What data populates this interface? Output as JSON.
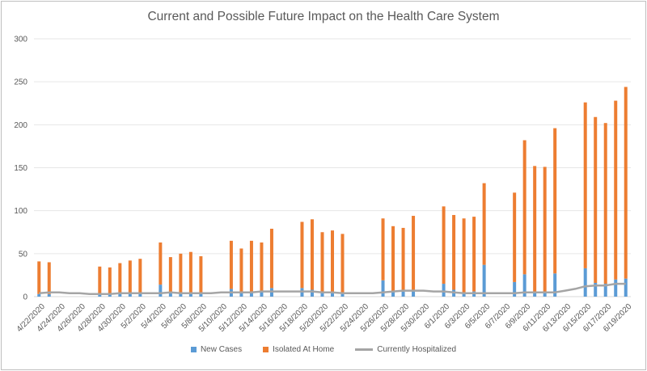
{
  "chart_data": {
    "type": "bar",
    "title": "Current and Possible Future Impact on the Health Care System",
    "xlabel": "",
    "ylabel": "",
    "ylim": [
      0,
      300
    ],
    "yticks": [
      0,
      50,
      100,
      150,
      200,
      250,
      300
    ],
    "grid": true,
    "legend_position": "bottom",
    "categories": [
      "4/22/2020",
      "4/23/2020",
      "4/24/2020",
      "4/25/2020",
      "4/26/2020",
      "4/27/2020",
      "4/28/2020",
      "4/29/2020",
      "4/30/2020",
      "5/1/2020",
      "5/2/2020",
      "5/3/2020",
      "5/4/2020",
      "5/5/2020",
      "5/6/2020",
      "5/7/2020",
      "5/8/2020",
      "5/9/2020",
      "5/10/2020",
      "5/11/2020",
      "5/12/2020",
      "5/13/2020",
      "5/14/2020",
      "5/15/2020",
      "5/16/2020",
      "5/17/2020",
      "5/18/2020",
      "5/19/2020",
      "5/20/2020",
      "5/21/2020",
      "5/22/2020",
      "5/23/2020",
      "5/24/2020",
      "5/25/2020",
      "5/26/2020",
      "5/27/2020",
      "5/28/2020",
      "5/29/2020",
      "5/30/2020",
      "5/31/2020",
      "6/1/2020",
      "6/2/2020",
      "6/3/2020",
      "6/4/2020",
      "6/5/2020",
      "6/6/2020",
      "6/7/2020",
      "6/8/2020",
      "6/9/2020",
      "6/10/2020",
      "6/11/2020",
      "6/12/2020",
      "6/13/2020",
      "6/14/2020",
      "6/15/2020",
      "6/16/2020",
      "6/17/2020",
      "6/18/2020",
      "6/19/2020"
    ],
    "tick_labels": [
      "4/22/2020",
      "4/24/2020",
      "4/26/2020",
      "4/28/2020",
      "4/30/2020",
      "5/2/2020",
      "5/4/2020",
      "5/6/2020",
      "5/8/2020",
      "5/10/2020",
      "5/12/2020",
      "5/14/2020",
      "5/16/2020",
      "5/18/2020",
      "5/20/2020",
      "5/22/2020",
      "5/24/2020",
      "5/26/2020",
      "5/28/2020",
      "5/30/2020",
      "6/1/2020",
      "6/3/2020",
      "6/5/2020",
      "6/7/2020",
      "6/9/2020",
      "6/11/2020",
      "6/13/2020",
      "6/15/2020",
      "6/17/2020",
      "6/19/2020"
    ],
    "series": [
      {
        "name": "New Cases",
        "kind": "stacked-bar",
        "color": "#5b9bd5",
        "values": [
          3,
          3,
          null,
          null,
          null,
          null,
          3,
          4,
          5,
          4,
          4,
          null,
          14,
          4,
          5,
          5,
          4,
          null,
          null,
          9,
          5,
          6,
          7,
          10,
          null,
          null,
          10,
          8,
          5,
          5,
          5,
          null,
          null,
          null,
          19,
          6,
          6,
          8,
          null,
          null,
          15,
          8,
          5,
          6,
          37,
          null,
          null,
          17,
          26,
          6,
          6,
          27,
          null,
          null,
          33,
          16,
          15,
          20,
          21
        ]
      },
      {
        "name": "Isolated At Home",
        "kind": "stacked-bar",
        "color": "#ed7d31",
        "values": [
          38,
          37,
          null,
          null,
          null,
          null,
          32,
          30,
          34,
          38,
          40,
          null,
          49,
          42,
          45,
          47,
          43,
          null,
          null,
          56,
          51,
          59,
          56,
          69,
          null,
          null,
          77,
          82,
          70,
          72,
          68,
          null,
          null,
          null,
          72,
          76,
          74,
          86,
          null,
          null,
          90,
          87,
          86,
          87,
          95,
          null,
          null,
          104,
          156,
          146,
          145,
          169,
          null,
          null,
          193,
          193,
          187,
          208,
          223
        ]
      },
      {
        "name": "Currently Hospitalized",
        "kind": "line",
        "color": "#a5a5a5",
        "values": [
          4,
          5,
          5,
          4,
          4,
          3,
          3,
          3,
          4,
          4,
          4,
          4,
          4,
          5,
          4,
          4,
          4,
          4,
          5,
          5,
          5,
          5,
          6,
          6,
          6,
          6,
          6,
          6,
          5,
          5,
          4,
          4,
          4,
          4,
          5,
          6,
          7,
          7,
          7,
          6,
          6,
          5,
          4,
          4,
          4,
          4,
          4,
          4,
          5,
          5,
          5,
          5,
          7,
          9,
          12,
          13,
          13,
          15,
          15
        ]
      }
    ]
  }
}
